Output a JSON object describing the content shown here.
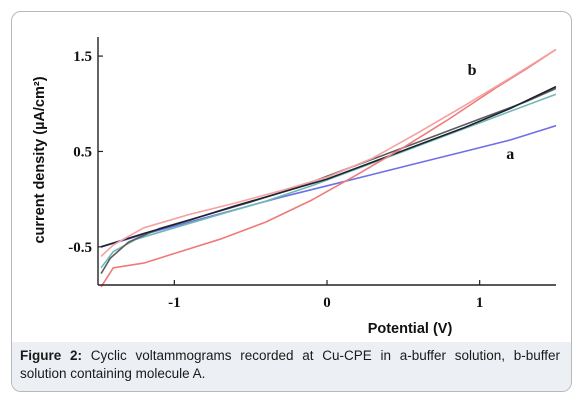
{
  "chart_data": {
    "type": "line",
    "xlabel": "Potential (V)",
    "ylabel": "current density (µA/cm²)",
    "xlim": [
      -1.5,
      1.5
    ],
    "ylim": [
      -0.9,
      1.7
    ],
    "x_ticks": [
      "-1",
      "0",
      "1"
    ],
    "y_ticks": [
      "1.5",
      "0.5",
      "-0.5"
    ],
    "grid": false,
    "annotations": [
      {
        "text": "b",
        "x": 0.95,
        "y": 1.3
      },
      {
        "text": "a",
        "x": 1.2,
        "y": 0.42
      }
    ],
    "series": [
      {
        "id": "a-forward",
        "color": "#6f6fe6",
        "x": [
          -1.48,
          -1.2,
          -0.9,
          -0.6,
          -0.3,
          0,
          0.3,
          0.6,
          0.9,
          1.2,
          1.5
        ],
        "y": [
          -0.5,
          -0.37,
          -0.24,
          -0.11,
          0.02,
          0.14,
          0.26,
          0.38,
          0.5,
          0.62,
          0.77
        ]
      },
      {
        "id": "cyan-forward",
        "color": "#6fb8b8",
        "x": [
          -1.48,
          -1.4,
          -1.25,
          -1.0,
          -0.7,
          -0.4,
          -0.1,
          0.2,
          0.5,
          0.8,
          1.1,
          1.5
        ],
        "y": [
          -0.72,
          -0.55,
          -0.42,
          -0.3,
          -0.16,
          -0.02,
          0.14,
          0.32,
          0.5,
          0.68,
          0.86,
          1.1
        ]
      },
      {
        "id": "gray-forward",
        "color": "#5c5c5c",
        "x": [
          -1.48,
          -1.42,
          -1.3,
          -1.1,
          -0.8,
          -0.5,
          -0.2,
          0.1,
          0.4,
          0.7,
          1.0,
          1.3,
          1.5
        ],
        "y": [
          -0.78,
          -0.62,
          -0.45,
          -0.31,
          -0.17,
          -0.03,
          0.12,
          0.3,
          0.48,
          0.66,
          0.84,
          1.02,
          1.16
        ]
      },
      {
        "id": "black-forward",
        "color": "#1e2230",
        "x": [
          -1.48,
          -1.2,
          -0.9,
          -0.6,
          -0.3,
          0,
          0.3,
          0.6,
          0.9,
          1.2,
          1.5
        ],
        "y": [
          -0.5,
          -0.36,
          -0.22,
          -0.07,
          0.07,
          0.21,
          0.39,
          0.57,
          0.75,
          0.95,
          1.18
        ]
      },
      {
        "id": "b-forward",
        "color": "#f07a7a",
        "x": [
          -1.48,
          -1.4,
          -1.2,
          -1.0,
          -0.7,
          -0.4,
          -0.1,
          0.2,
          0.5,
          0.8,
          1.1,
          1.3,
          1.5
        ],
        "y": [
          -0.92,
          -0.72,
          -0.67,
          -0.57,
          -0.42,
          -0.24,
          -0.01,
          0.26,
          0.54,
          0.84,
          1.16,
          1.36,
          1.57
        ]
      },
      {
        "id": "b-reverse",
        "color": "#f5a0a0",
        "x": [
          1.5,
          1.2,
          0.9,
          0.6,
          0.3,
          0.0,
          -0.3,
          -0.6,
          -0.9,
          -1.2,
          -1.4,
          -1.48
        ],
        "y": [
          1.57,
          1.27,
          0.98,
          0.7,
          0.43,
          0.23,
          0.09,
          -0.04,
          -0.16,
          -0.3,
          -0.48,
          -0.6
        ]
      }
    ]
  },
  "caption": {
    "label": "Figure 2:",
    "text": " Cyclic voltammograms recorded at Cu-CPE in a-buffer solution, b-buffer solution containing molecule A."
  }
}
